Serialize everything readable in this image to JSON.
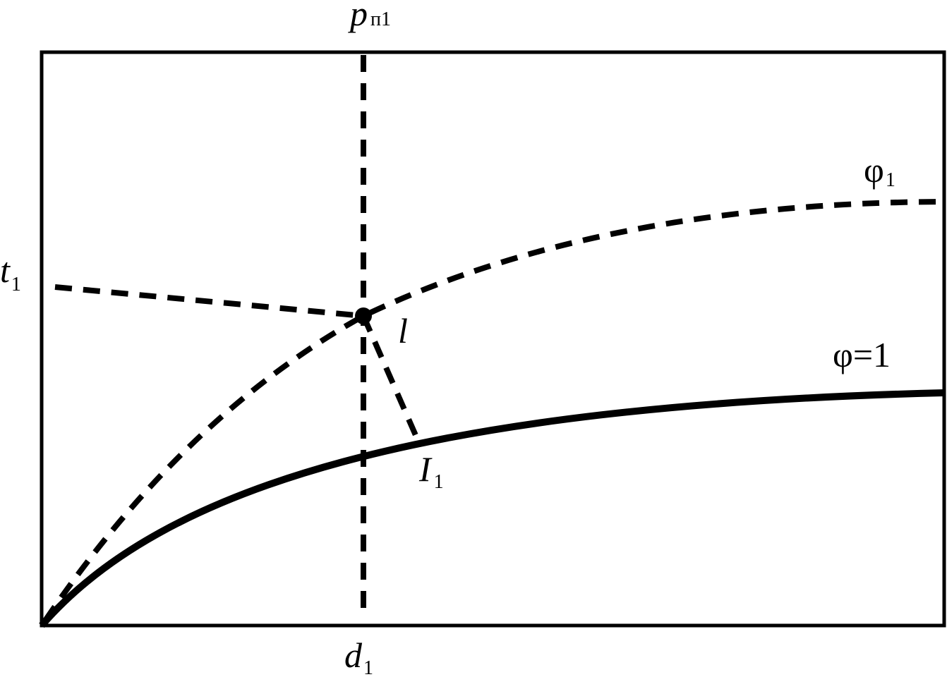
{
  "labels": [
    {
      "text": "p",
      "sub": "п1"
    },
    {
      "text": "t",
      "sub": "1"
    },
    {
      "text": "φ",
      "sub": "1"
    },
    {
      "text": "l"
    },
    {
      "text": "φ=1"
    },
    {
      "text": "I",
      "sub": "1"
    },
    {
      "text": "d",
      "sub": "1"
    }
  ]
}
